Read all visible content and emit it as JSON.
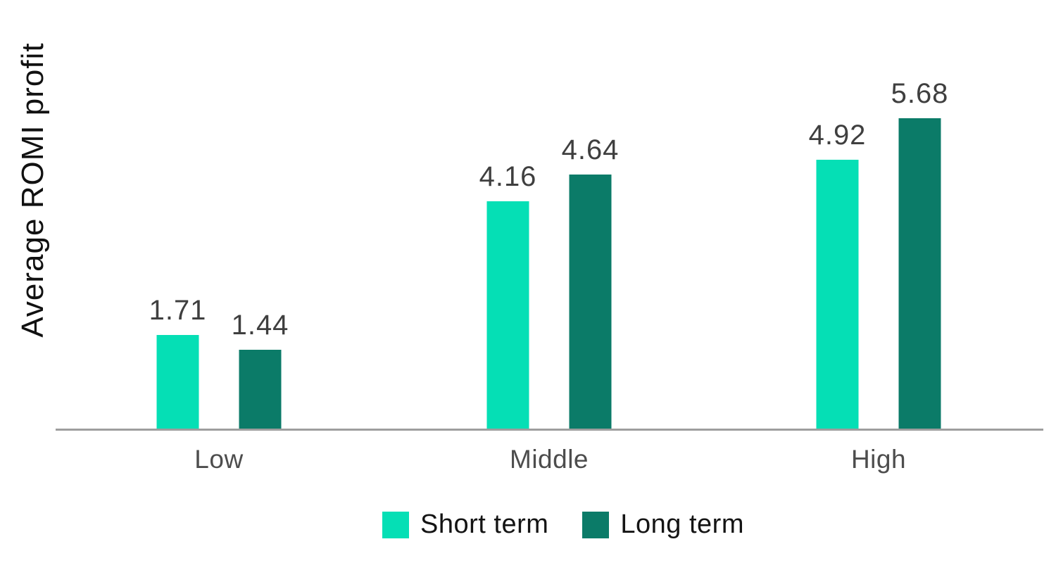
{
  "chart_data": {
    "type": "bar",
    "title": "",
    "xlabel": "",
    "ylabel": "Average ROMI profit",
    "categories": [
      "Low",
      "Middle",
      "High"
    ],
    "series": [
      {
        "name": "Short term",
        "color": "#05DFB5",
        "values": [
          1.71,
          4.16,
          4.92
        ]
      },
      {
        "name": "Long term",
        "color": "#0B7B68",
        "values": [
          1.44,
          4.64,
          5.68
        ]
      }
    ],
    "ylim": [
      0,
      6.5
    ],
    "grid": false,
    "y_axis_ticks_visible": false,
    "value_labels_shown": true,
    "legend_position": "bottom"
  },
  "colors": {
    "axis_line": "#9E9E9E",
    "value_label_text": "#3F3F3F",
    "category_label_text": "#4D4D4D",
    "legend_text": "#141414",
    "axis_title_text": "#111111",
    "background": "#FFFFFF"
  }
}
